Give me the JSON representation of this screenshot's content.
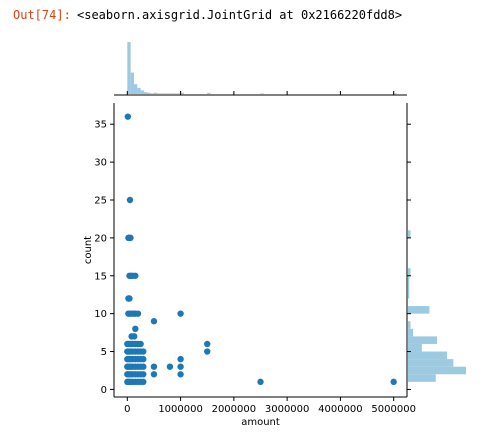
{
  "cell": {
    "prompt": "Out[74]:",
    "output": "<seaborn.axisgrid.JointGrid at 0x2166220fdd8>"
  },
  "chart_data": {
    "type": "scatter",
    "xlabel": "amount",
    "ylabel": "count",
    "xlim": [
      -250000,
      5250000
    ],
    "ylim": [
      -1,
      37.8
    ],
    "xticks": [
      0,
      1000000,
      2000000,
      3000000,
      4000000,
      5000000
    ],
    "xtick_labels": [
      "0",
      "1000000",
      "2000000",
      "3000000",
      "4000000",
      "5000000"
    ],
    "yticks": [
      0,
      5,
      10,
      15,
      20,
      25,
      30,
      35
    ],
    "ytick_labels": [
      "0",
      "5",
      "10",
      "15",
      "20",
      "25",
      "30",
      "35"
    ],
    "grid": false,
    "point_color": "#1f77b4",
    "hist_color": "#9ecae1",
    "points": [
      [
        10000,
        36
      ],
      [
        50000,
        25
      ],
      [
        20000,
        20
      ],
      [
        40000,
        20
      ],
      [
        60000,
        20
      ],
      [
        40000,
        15
      ],
      [
        70000,
        15
      ],
      [
        100000,
        15
      ],
      [
        150000,
        15
      ],
      [
        20000,
        12
      ],
      [
        40000,
        12
      ],
      [
        20000,
        10
      ],
      [
        50000,
        10
      ],
      [
        80000,
        10
      ],
      [
        120000,
        10
      ],
      [
        150000,
        10
      ],
      [
        200000,
        10
      ],
      [
        1000000,
        10
      ],
      [
        500000,
        9
      ],
      [
        150000,
        8
      ],
      [
        80000,
        7
      ],
      [
        130000,
        7
      ],
      [
        0,
        6
      ],
      [
        30000,
        6
      ],
      [
        60000,
        6
      ],
      [
        100000,
        6
      ],
      [
        150000,
        6
      ],
      [
        200000,
        6
      ],
      [
        250000,
        6
      ],
      [
        1500000,
        6
      ],
      [
        0,
        5
      ],
      [
        30000,
        5
      ],
      [
        60000,
        5
      ],
      [
        100000,
        5
      ],
      [
        150000,
        5
      ],
      [
        200000,
        5
      ],
      [
        250000,
        5
      ],
      [
        300000,
        5
      ],
      [
        1500000,
        5
      ],
      [
        0,
        4
      ],
      [
        30000,
        4
      ],
      [
        60000,
        4
      ],
      [
        100000,
        4
      ],
      [
        150000,
        4
      ],
      [
        200000,
        4
      ],
      [
        250000,
        4
      ],
      [
        300000,
        4
      ],
      [
        1000000,
        4
      ],
      [
        0,
        3
      ],
      [
        30000,
        3
      ],
      [
        60000,
        3
      ],
      [
        100000,
        3
      ],
      [
        150000,
        3
      ],
      [
        200000,
        3
      ],
      [
        250000,
        3
      ],
      [
        300000,
        3
      ],
      [
        500000,
        3
      ],
      [
        800000,
        3
      ],
      [
        1000000,
        3
      ],
      [
        0,
        2
      ],
      [
        30000,
        2
      ],
      [
        60000,
        2
      ],
      [
        100000,
        2
      ],
      [
        150000,
        2
      ],
      [
        200000,
        2
      ],
      [
        250000,
        2
      ],
      [
        300000,
        2
      ],
      [
        500000,
        2
      ],
      [
        1000000,
        2
      ],
      [
        0,
        1
      ],
      [
        30000,
        1
      ],
      [
        60000,
        1
      ],
      [
        100000,
        1
      ],
      [
        150000,
        1
      ],
      [
        200000,
        1
      ],
      [
        250000,
        1
      ],
      [
        300000,
        1
      ],
      [
        2500000,
        1
      ],
      [
        5000000,
        1
      ]
    ],
    "marginal_x": {
      "bin_edges": [
        0,
        62500,
        125000,
        187500,
        250000,
        312500,
        375000,
        437500,
        500000,
        562500,
        625000,
        687500,
        750000,
        812500,
        875000,
        937500,
        1000000,
        1062500,
        1500000,
        1562500,
        2500000,
        2562500,
        5000000,
        5062500
      ],
      "counts": [
        85,
        35,
        16,
        10,
        6,
        3,
        2,
        1,
        2,
        1,
        1,
        1,
        1,
        1,
        1,
        1,
        2,
        0,
        2,
        0,
        1,
        0,
        1
      ]
    },
    "marginal_y": {
      "bin_edges": [
        1,
        2,
        3,
        4,
        5,
        6,
        7,
        8,
        9,
        10,
        11,
        12,
        15,
        16,
        20,
        21
      ],
      "counts": [
        22,
        46,
        36,
        31,
        11,
        23,
        4,
        2,
        0,
        17,
        0,
        1,
        2,
        0,
        2
      ]
    }
  }
}
